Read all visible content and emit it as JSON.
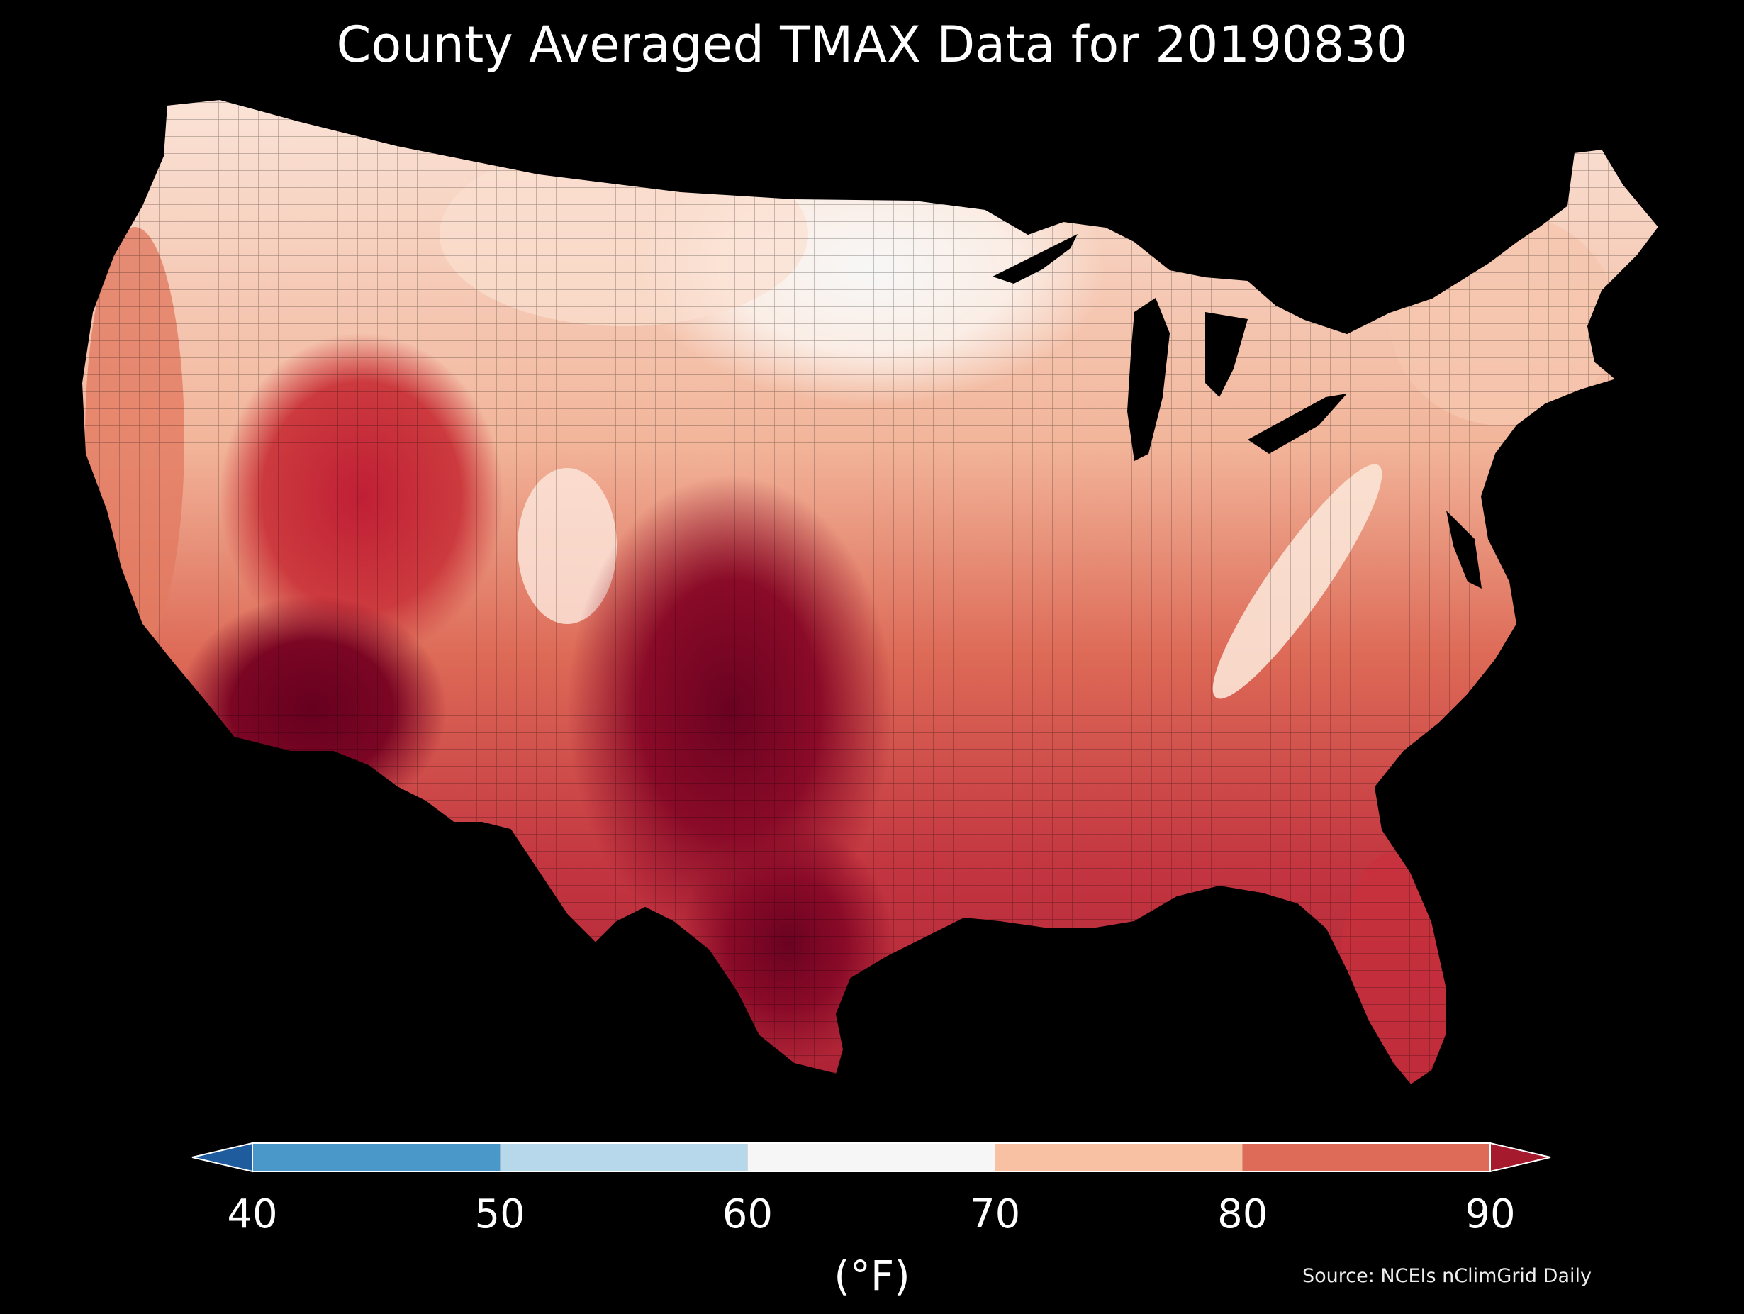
{
  "title": "County Averaged TMAX Data for 20190830",
  "colorbar": {
    "unit_label": "(°F)",
    "ticks": [
      "40",
      "50",
      "60",
      "70",
      "80",
      "90"
    ],
    "bins": [
      {
        "range": "<40",
        "color": "#1f5c9e"
      },
      {
        "range": "40-50",
        "color": "#4a97c9"
      },
      {
        "range": "50-60",
        "color": "#b7d7ea"
      },
      {
        "range": "60-70",
        "color": "#f6f6f6"
      },
      {
        "range": "70-80",
        "color": "#f8c1a4"
      },
      {
        "range": "80-90",
        "color": "#de6b58"
      },
      {
        "range": ">90",
        "color": "#a51a2c"
      }
    ]
  },
  "source": "Source: NCEIs nClimGrid Daily",
  "map": {
    "region": "contiguous-united-states",
    "units": "county",
    "variable": "TMAX",
    "regions_by_temp": [
      {
        "name": "upper-midwest-north",
        "color": "#f6f6f6"
      },
      {
        "name": "northern-plains",
        "color": "#fbe2d4"
      },
      {
        "name": "pacific-northwest",
        "color": "#e8866d"
      },
      {
        "name": "great-basin",
        "color": "#c8283a"
      },
      {
        "name": "desert-southwest",
        "color": "#6b0321"
      },
      {
        "name": "southern-plains",
        "color": "#8a0b26"
      },
      {
        "name": "southeast",
        "color": "#c53a3f"
      },
      {
        "name": "northeast",
        "color": "#f2b59a"
      },
      {
        "name": "appalachians",
        "color": "#fbe4d6"
      }
    ]
  }
}
